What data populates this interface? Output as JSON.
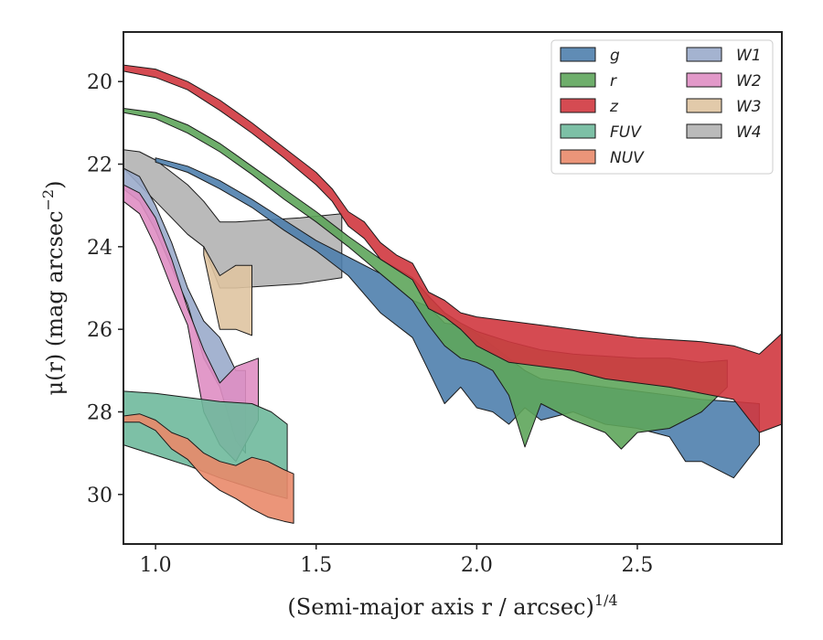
{
  "chart_data": {
    "type": "area",
    "xlabel": "(Semi-major axis r / arcsec)",
    "xlabel_superscript": "1/4",
    "ylabel": "μ(r) (mag arcsec",
    "ylabel_superscript": "−2",
    "ylabel_end": ")",
    "xlim": [
      0.9,
      2.95
    ],
    "ylim": [
      31.2,
      18.8
    ],
    "y_inverted": true,
    "xticks": [
      1.0,
      1.5,
      2.0,
      2.5
    ],
    "xtick_labels": [
      "1.0",
      "1.5",
      "2.0",
      "2.5"
    ],
    "yticks": [
      20,
      22,
      24,
      26,
      28,
      30
    ],
    "ytick_labels": [
      "20",
      "22",
      "24",
      "26",
      "28",
      "30"
    ],
    "grid": false,
    "legend": {
      "position": "top-right",
      "columns": 2
    },
    "series": [
      {
        "name": "W4",
        "color": "#b3b3b3",
        "upper": [
          [
            0.9,
            21.65
          ],
          [
            0.95,
            21.7
          ],
          [
            1.0,
            21.9
          ],
          [
            1.05,
            22.2
          ],
          [
            1.1,
            22.5
          ],
          [
            1.15,
            22.9
          ],
          [
            1.2,
            23.4
          ],
          [
            1.25,
            23.4
          ],
          [
            1.35,
            23.35
          ],
          [
            1.45,
            23.3
          ],
          [
            1.58,
            23.2
          ]
        ],
        "lower": [
          [
            0.9,
            22.1
          ],
          [
            0.95,
            22.5
          ],
          [
            1.0,
            22.9
          ],
          [
            1.05,
            23.3
          ],
          [
            1.1,
            23.7
          ],
          [
            1.15,
            24.0
          ],
          [
            1.2,
            25.0
          ],
          [
            1.25,
            25.0
          ],
          [
            1.35,
            24.95
          ],
          [
            1.45,
            24.9
          ],
          [
            1.58,
            24.75
          ]
        ]
      },
      {
        "name": "W3",
        "color": "#dfc4a1",
        "upper": [
          [
            1.15,
            24.0
          ],
          [
            1.2,
            24.7
          ],
          [
            1.25,
            24.45
          ],
          [
            1.3,
            24.45
          ]
        ],
        "lower": [
          [
            1.15,
            24.2
          ],
          [
            1.2,
            26.0
          ],
          [
            1.25,
            26.0
          ],
          [
            1.3,
            26.15
          ]
        ]
      },
      {
        "name": "W1",
        "color": "#9aabcb",
        "upper": [
          [
            0.9,
            22.1
          ],
          [
            0.95,
            22.3
          ],
          [
            1.0,
            23.0
          ],
          [
            1.05,
            23.9
          ],
          [
            1.1,
            25.0
          ],
          [
            1.15,
            25.8
          ],
          [
            1.2,
            26.2
          ],
          [
            1.25,
            27.0
          ],
          [
            1.28,
            27.0
          ]
        ],
        "lower": [
          [
            0.9,
            22.6
          ],
          [
            0.95,
            22.9
          ],
          [
            1.0,
            23.6
          ],
          [
            1.05,
            24.5
          ],
          [
            1.1,
            25.4
          ],
          [
            1.15,
            26.7
          ],
          [
            1.2,
            27.4
          ],
          [
            1.25,
            28.7
          ],
          [
            1.28,
            29.0
          ]
        ]
      },
      {
        "name": "W2",
        "color": "#df8ec3",
        "upper": [
          [
            0.9,
            22.5
          ],
          [
            0.95,
            22.7
          ],
          [
            1.0,
            23.3
          ],
          [
            1.05,
            24.3
          ],
          [
            1.1,
            25.5
          ],
          [
            1.15,
            26.5
          ],
          [
            1.2,
            27.3
          ],
          [
            1.25,
            26.9
          ],
          [
            1.32,
            26.7
          ]
        ],
        "lower": [
          [
            0.9,
            22.9
          ],
          [
            0.95,
            23.2
          ],
          [
            1.0,
            24.0
          ],
          [
            1.05,
            25.0
          ],
          [
            1.1,
            25.9
          ],
          [
            1.15,
            28.0
          ],
          [
            1.2,
            28.8
          ],
          [
            1.25,
            29.2
          ],
          [
            1.32,
            28.2
          ]
        ]
      },
      {
        "name": "FUV",
        "color": "#6fb99c",
        "upper": [
          [
            0.9,
            27.5
          ],
          [
            1.0,
            27.55
          ],
          [
            1.1,
            27.65
          ],
          [
            1.2,
            27.75
          ],
          [
            1.3,
            27.8
          ],
          [
            1.36,
            28.0
          ],
          [
            1.41,
            28.3
          ]
        ],
        "lower": [
          [
            0.9,
            28.8
          ],
          [
            1.0,
            29.05
          ],
          [
            1.1,
            29.3
          ],
          [
            1.2,
            29.6
          ],
          [
            1.3,
            29.85
          ],
          [
            1.36,
            30.0
          ],
          [
            1.41,
            30.1
          ]
        ]
      },
      {
        "name": "NUV",
        "color": "#e98a6a",
        "upper": [
          [
            0.9,
            28.1
          ],
          [
            0.95,
            28.05
          ],
          [
            1.0,
            28.2
          ],
          [
            1.05,
            28.5
          ],
          [
            1.1,
            28.65
          ],
          [
            1.15,
            29.0
          ],
          [
            1.2,
            29.2
          ],
          [
            1.25,
            29.3
          ],
          [
            1.3,
            29.1
          ],
          [
            1.35,
            29.2
          ],
          [
            1.4,
            29.4
          ],
          [
            1.43,
            29.5
          ]
        ],
        "lower": [
          [
            0.9,
            28.25
          ],
          [
            0.95,
            28.25
          ],
          [
            1.0,
            28.45
          ],
          [
            1.05,
            28.9
          ],
          [
            1.1,
            29.15
          ],
          [
            1.15,
            29.6
          ],
          [
            1.2,
            29.9
          ],
          [
            1.25,
            30.1
          ],
          [
            1.3,
            30.35
          ],
          [
            1.35,
            30.55
          ],
          [
            1.4,
            30.65
          ],
          [
            1.43,
            30.7
          ]
        ]
      },
      {
        "name": "g",
        "color": "#4f7fad",
        "upper": [
          [
            1.0,
            21.85
          ],
          [
            1.1,
            22.05
          ],
          [
            1.2,
            22.4
          ],
          [
            1.3,
            22.85
          ],
          [
            1.4,
            23.35
          ],
          [
            1.5,
            23.85
          ],
          [
            1.6,
            24.25
          ],
          [
            1.7,
            24.65
          ],
          [
            1.8,
            25.3
          ],
          [
            1.85,
            25.45
          ],
          [
            1.9,
            25.85
          ],
          [
            1.95,
            25.9
          ],
          [
            2.0,
            26.1
          ],
          [
            2.05,
            26.4
          ],
          [
            2.1,
            26.7
          ],
          [
            2.15,
            27.0
          ],
          [
            2.2,
            27.2
          ],
          [
            2.3,
            27.3
          ],
          [
            2.4,
            27.4
          ],
          [
            2.5,
            27.5
          ],
          [
            2.6,
            27.6
          ],
          [
            2.7,
            27.7
          ],
          [
            2.8,
            27.75
          ],
          [
            2.88,
            27.8
          ]
        ],
        "lower": [
          [
            1.0,
            21.95
          ],
          [
            1.1,
            22.2
          ],
          [
            1.2,
            22.6
          ],
          [
            1.3,
            23.05
          ],
          [
            1.4,
            23.6
          ],
          [
            1.5,
            24.1
          ],
          [
            1.6,
            24.7
          ],
          [
            1.7,
            25.6
          ],
          [
            1.8,
            26.2
          ],
          [
            1.85,
            27.0
          ],
          [
            1.9,
            27.8
          ],
          [
            1.95,
            27.4
          ],
          [
            2.0,
            27.9
          ],
          [
            2.05,
            28.0
          ],
          [
            2.1,
            28.3
          ],
          [
            2.15,
            27.9
          ],
          [
            2.2,
            28.2
          ],
          [
            2.3,
            28.0
          ],
          [
            2.4,
            28.3
          ],
          [
            2.5,
            28.4
          ],
          [
            2.6,
            28.6
          ],
          [
            2.65,
            29.2
          ],
          [
            2.7,
            29.2
          ],
          [
            2.8,
            29.6
          ],
          [
            2.88,
            28.8
          ]
        ]
      },
      {
        "name": "r",
        "color": "#5ea55b",
        "upper": [
          [
            0.9,
            20.65
          ],
          [
            1.0,
            20.75
          ],
          [
            1.1,
            21.05
          ],
          [
            1.2,
            21.5
          ],
          [
            1.3,
            22.05
          ],
          [
            1.4,
            22.6
          ],
          [
            1.5,
            23.15
          ],
          [
            1.6,
            23.75
          ],
          [
            1.7,
            24.3
          ],
          [
            1.8,
            24.75
          ],
          [
            1.85,
            25.2
          ],
          [
            1.9,
            25.6
          ],
          [
            1.95,
            25.85
          ],
          [
            2.0,
            26.05
          ],
          [
            2.1,
            26.3
          ],
          [
            2.2,
            26.5
          ],
          [
            2.3,
            26.6
          ],
          [
            2.4,
            26.65
          ],
          [
            2.5,
            26.7
          ],
          [
            2.6,
            26.7
          ],
          [
            2.7,
            26.8
          ],
          [
            2.78,
            26.75
          ]
        ],
        "lower": [
          [
            0.9,
            20.75
          ],
          [
            1.0,
            20.9
          ],
          [
            1.1,
            21.25
          ],
          [
            1.2,
            21.7
          ],
          [
            1.3,
            22.25
          ],
          [
            1.4,
            22.85
          ],
          [
            1.5,
            23.4
          ],
          [
            1.6,
            24.0
          ],
          [
            1.7,
            24.65
          ],
          [
            1.8,
            25.3
          ],
          [
            1.85,
            25.9
          ],
          [
            1.9,
            26.4
          ],
          [
            1.95,
            26.7
          ],
          [
            2.0,
            26.8
          ],
          [
            2.05,
            27.0
          ],
          [
            2.1,
            27.6
          ],
          [
            2.15,
            28.85
          ],
          [
            2.2,
            27.8
          ],
          [
            2.3,
            28.2
          ],
          [
            2.4,
            28.5
          ],
          [
            2.45,
            28.9
          ],
          [
            2.5,
            28.5
          ],
          [
            2.6,
            28.4
          ],
          [
            2.7,
            28.0
          ],
          [
            2.78,
            27.4
          ]
        ]
      },
      {
        "name": "z",
        "color": "#d0373f",
        "upper": [
          [
            0.9,
            19.6
          ],
          [
            1.0,
            19.7
          ],
          [
            1.1,
            20.0
          ],
          [
            1.2,
            20.45
          ],
          [
            1.3,
            21.0
          ],
          [
            1.4,
            21.6
          ],
          [
            1.5,
            22.2
          ],
          [
            1.55,
            22.6
          ],
          [
            1.6,
            23.15
          ],
          [
            1.65,
            23.4
          ],
          [
            1.7,
            23.9
          ],
          [
            1.75,
            24.2
          ],
          [
            1.8,
            24.4
          ],
          [
            1.85,
            25.1
          ],
          [
            1.9,
            25.3
          ],
          [
            1.95,
            25.6
          ],
          [
            2.0,
            25.7
          ],
          [
            2.1,
            25.8
          ],
          [
            2.2,
            25.9
          ],
          [
            2.3,
            26.0
          ],
          [
            2.4,
            26.1
          ],
          [
            2.5,
            26.2
          ],
          [
            2.6,
            26.25
          ],
          [
            2.7,
            26.3
          ],
          [
            2.8,
            26.4
          ],
          [
            2.88,
            26.6
          ],
          [
            2.95,
            26.1
          ]
        ],
        "lower": [
          [
            0.9,
            19.75
          ],
          [
            1.0,
            19.9
          ],
          [
            1.1,
            20.2
          ],
          [
            1.2,
            20.7
          ],
          [
            1.3,
            21.25
          ],
          [
            1.4,
            21.85
          ],
          [
            1.5,
            22.5
          ],
          [
            1.55,
            22.9
          ],
          [
            1.6,
            23.5
          ],
          [
            1.65,
            23.8
          ],
          [
            1.7,
            24.3
          ],
          [
            1.75,
            24.55
          ],
          [
            1.8,
            24.8
          ],
          [
            1.85,
            25.5
          ],
          [
            1.9,
            25.7
          ],
          [
            1.95,
            26.0
          ],
          [
            2.0,
            26.4
          ],
          [
            2.1,
            26.8
          ],
          [
            2.2,
            26.9
          ],
          [
            2.3,
            27.0
          ],
          [
            2.4,
            27.2
          ],
          [
            2.5,
            27.3
          ],
          [
            2.6,
            27.4
          ],
          [
            2.7,
            27.55
          ],
          [
            2.8,
            27.7
          ],
          [
            2.88,
            28.5
          ],
          [
            2.95,
            28.3
          ]
        ]
      }
    ],
    "legend_entries": [
      "g",
      "r",
      "z",
      "FUV",
      "NUV",
      "W1",
      "W2",
      "W3",
      "W4"
    ]
  }
}
